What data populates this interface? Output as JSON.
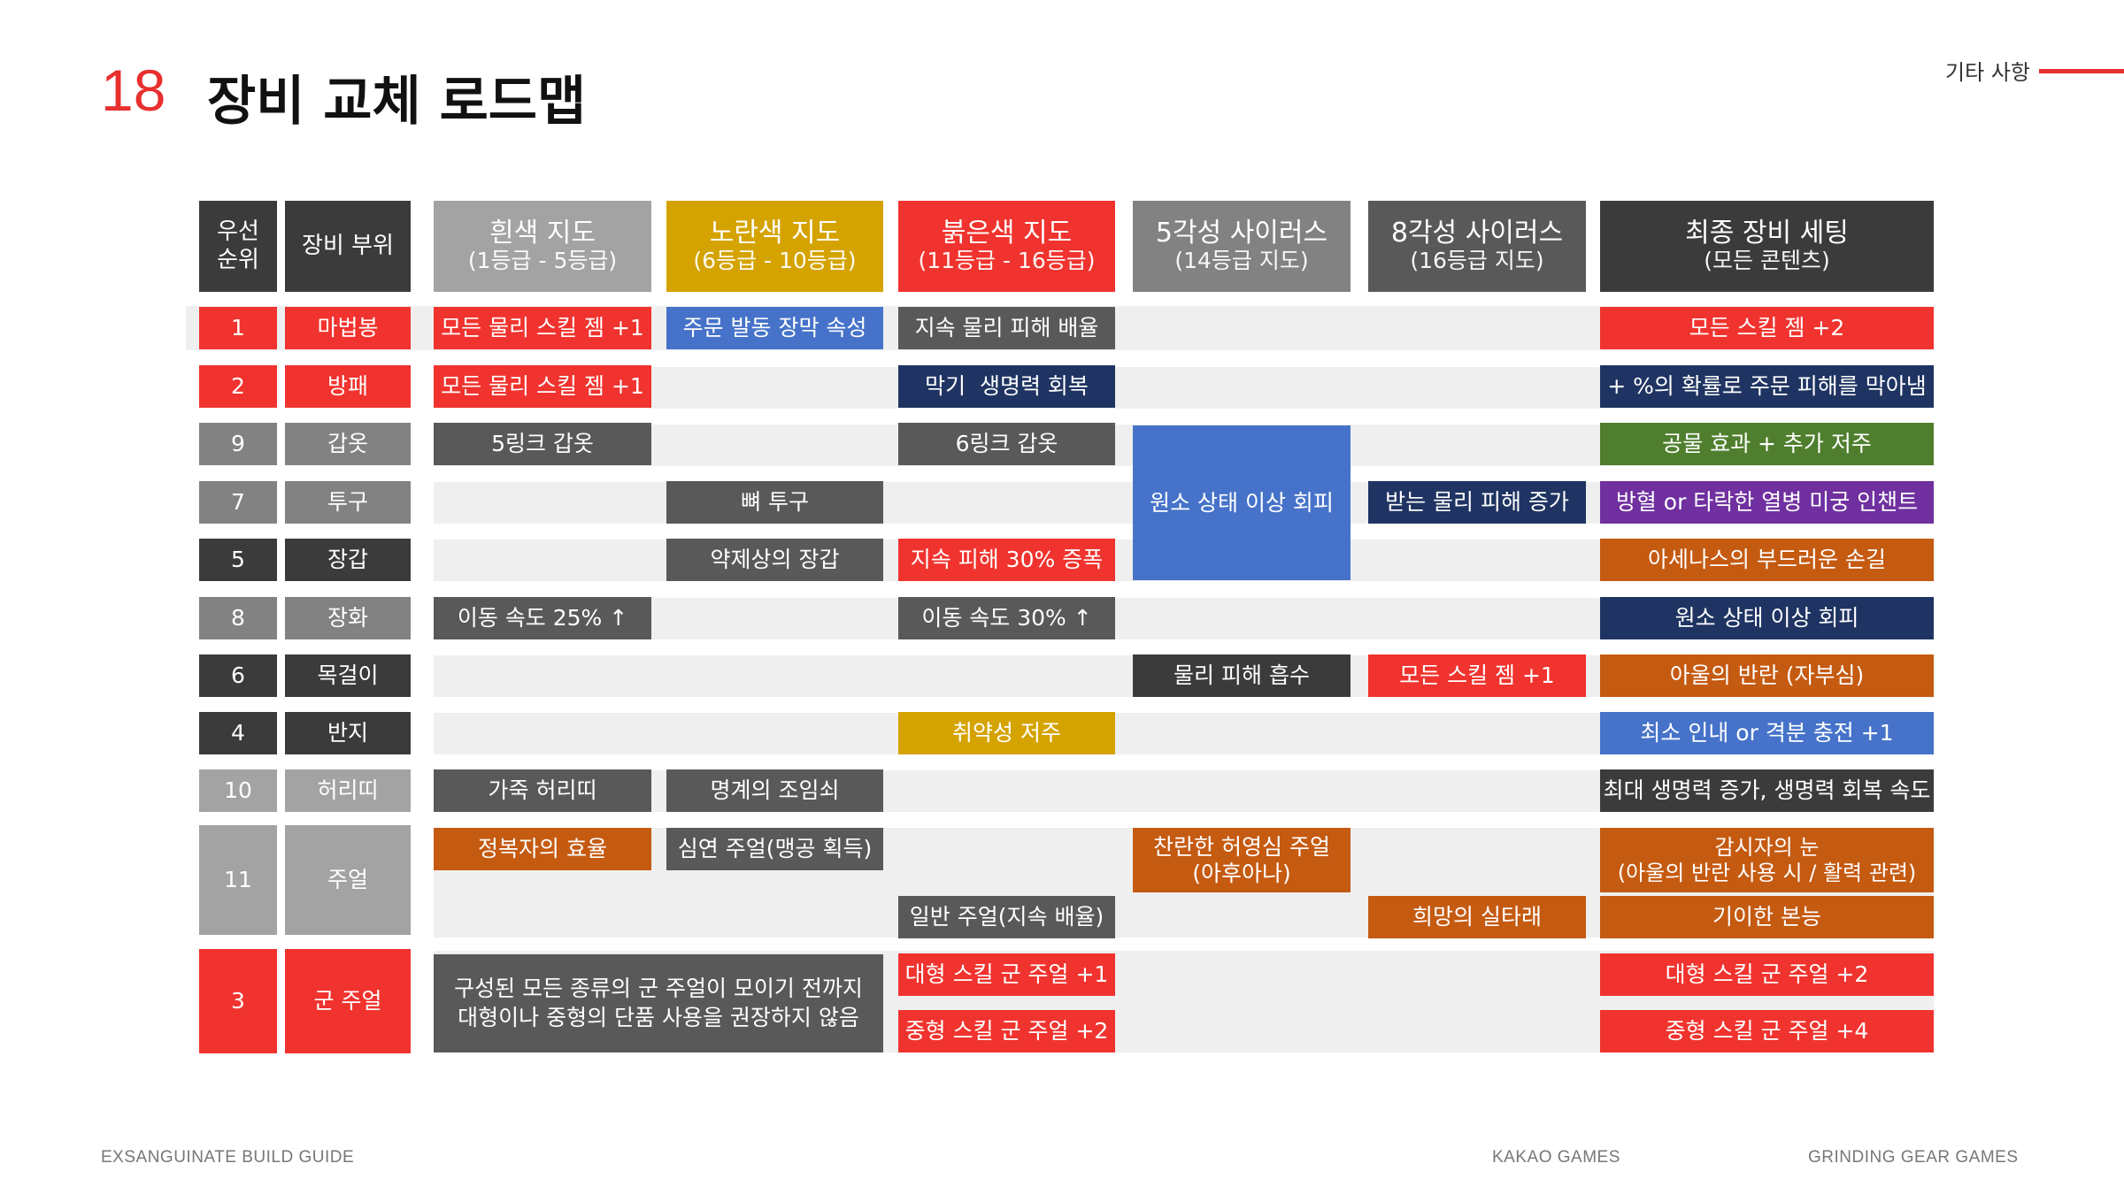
{
  "header": {
    "number": "18",
    "title": "장비 교체 로드맵",
    "corner_label": "기타 사항"
  },
  "columns": {
    "priority": "우선\n순위",
    "slot": "장비 부위",
    "white": {
      "title": "흰색 지도",
      "sub": "(1등급 - 5등급)"
    },
    "yellow": {
      "title": "노란색 지도",
      "sub": "(6등급 - 10등급)"
    },
    "red": {
      "title": "붉은색 지도",
      "sub": "(11등급 - 16등급)"
    },
    "sirus5": {
      "title": "5각성 사이러스",
      "sub": "(14등급 지도)"
    },
    "sirus8": {
      "title": "8각성 사이러스",
      "sub": "(16등급 지도)"
    },
    "final": {
      "title": "최종 장비 세팅",
      "sub": "(모든 콘텐츠)"
    }
  },
  "rows": [
    {
      "priority": "1",
      "slot": "마법봉",
      "white": "모든 물리 스킬 젬 +1",
      "yellow": "주문 발동 장막 속성",
      "red": "지속 물리 피해 배율",
      "final": "모든 스킬 젬 +2"
    },
    {
      "priority": "2",
      "slot": "방패",
      "white": "모든 물리 스킬 젬 +1",
      "red": "막기  생명력 회복",
      "final": "+ %의 확률로 주문 피해를 막아냄"
    },
    {
      "priority": "9",
      "slot": "갑옷",
      "white": "5링크 갑옷",
      "red": "6링크 갑옷",
      "final": "공물 효과 + 추가 저주"
    },
    {
      "priority": "7",
      "slot": "투구",
      "yellow": "뼈 투구",
      "sirus8": "받는 물리 피해 증가",
      "final": "방혈 or 타락한 열병 미궁 인챈트"
    },
    {
      "priority": "5",
      "slot": "장갑",
      "yellow": "약제상의 장갑",
      "red": "지속 피해 30% 증폭",
      "final": "아세나스의 부드러운 손길"
    },
    {
      "priority": "8",
      "slot": "장화",
      "white": "이동 속도 25% ↑",
      "red": "이동 속도 30% ↑",
      "final": "원소 상태 이상 회피"
    },
    {
      "priority": "6",
      "slot": "목걸이",
      "sirus5": "물리 피해 흡수",
      "sirus8": "모든 스킬 젬 +1",
      "final": "아울의 반란 (자부심)"
    },
    {
      "priority": "4",
      "slot": "반지",
      "red": "취약성 저주",
      "final": "최소 인내 or 격분 충전 +1"
    },
    {
      "priority": "10",
      "slot": "허리띠",
      "white": "가죽 허리띠",
      "yellow": "명계의 조임쇠",
      "final": "최대 생명력 증가, 생명력 회복 속도"
    },
    {
      "priority": "11",
      "slot": "주얼",
      "white": "정복자의 효율",
      "yellow": "심연 주얼(맹공 획득)",
      "sirus5": "찬란한 허영심 주얼\n(아후아나)",
      "final": "감시자의 눈\n(아울의 반란 사용 시 / 활력 관련)"
    },
    {
      "red": "일반 주얼(지속 배율)",
      "sirus8": "희망의 실타래",
      "final": "기이한 본능"
    },
    {
      "priority": "3",
      "slot": "군 주얼",
      "white_yellow": "구성된 모든 종류의 군 주얼이 모이기 전까지\n대형이나 중형의 단품 사용을 권장하지 않음",
      "red": "대형 스킬 군 주얼 +1",
      "final": "대형 스킬 군 주얼 +2"
    },
    {
      "red": "중형 스킬 군 주얼 +2",
      "final": "중형 스킬 군 주얼 +4"
    }
  ],
  "merged": {
    "sirus5_rows_3_5": "원소 상태 이상 회피"
  },
  "footer": {
    "left": "EXSANGUINATE  BUILD GUIDE",
    "center": "KAKAO GAMES",
    "right": "GRINDING GEAR GAMES"
  },
  "colors": {
    "accent_red": "#f0332e",
    "blue": "#4673c9",
    "gray": "#595959",
    "navy": "#1f3462",
    "green": "#4f7f2e",
    "purple": "#7030a0",
    "orange": "#c55a11",
    "yellow": "#d4a300"
  }
}
